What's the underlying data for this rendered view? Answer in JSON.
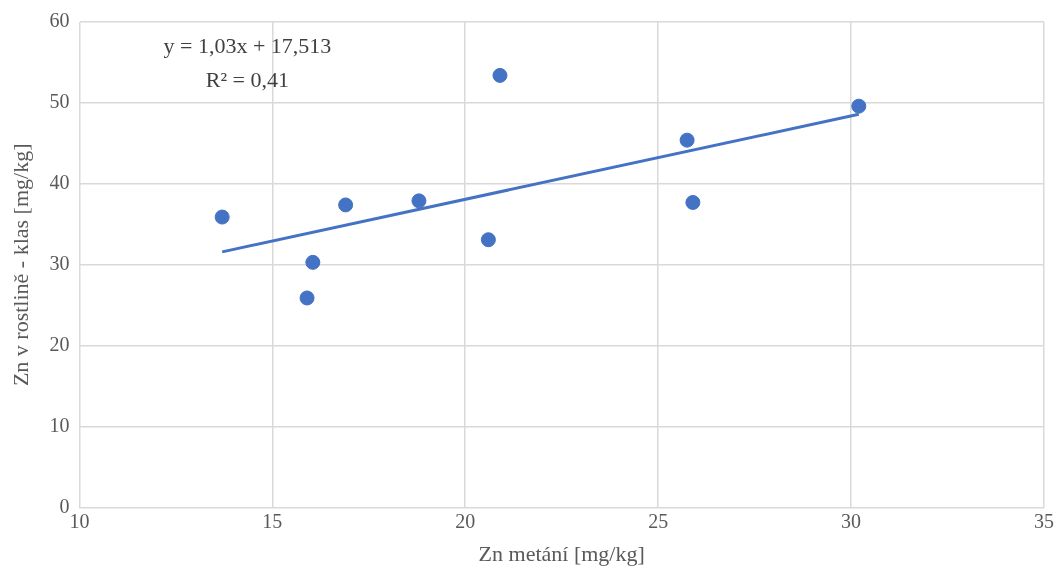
{
  "chart_data": {
    "type": "scatter",
    "xlabel": "Zn metání [mg/kg]",
    "ylabel": "Zn v rostlině - klas [mg/kg]",
    "xlim": [
      10,
      35
    ],
    "xticks": [
      10,
      15,
      20,
      25,
      30,
      35
    ],
    "ylim": [
      0,
      60
    ],
    "yticks": [
      0,
      10,
      20,
      30,
      40,
      50,
      60
    ],
    "grid": true,
    "legend": false,
    "marker": "circle",
    "annotations": [
      "y = 1,03x + 17,513",
      "R² = 0,41"
    ],
    "series": [
      {
        "color": "#4472c4",
        "x": [
          13.7,
          15.9,
          16.05,
          16.9,
          18.8,
          20.6,
          20.9,
          25.75,
          25.9,
          30.2
        ],
        "values": [
          35.9,
          25.9,
          30.3,
          37.4,
          37.9,
          33.1,
          53.4,
          45.4,
          37.7,
          49.6
        ]
      },
      {
        "type": "line",
        "color": "#4472c4",
        "x": [
          13.7,
          30.2
        ],
        "values": [
          31.6,
          48.6
        ],
        "marker": "none",
        "line_style": "solid"
      }
    ]
  }
}
